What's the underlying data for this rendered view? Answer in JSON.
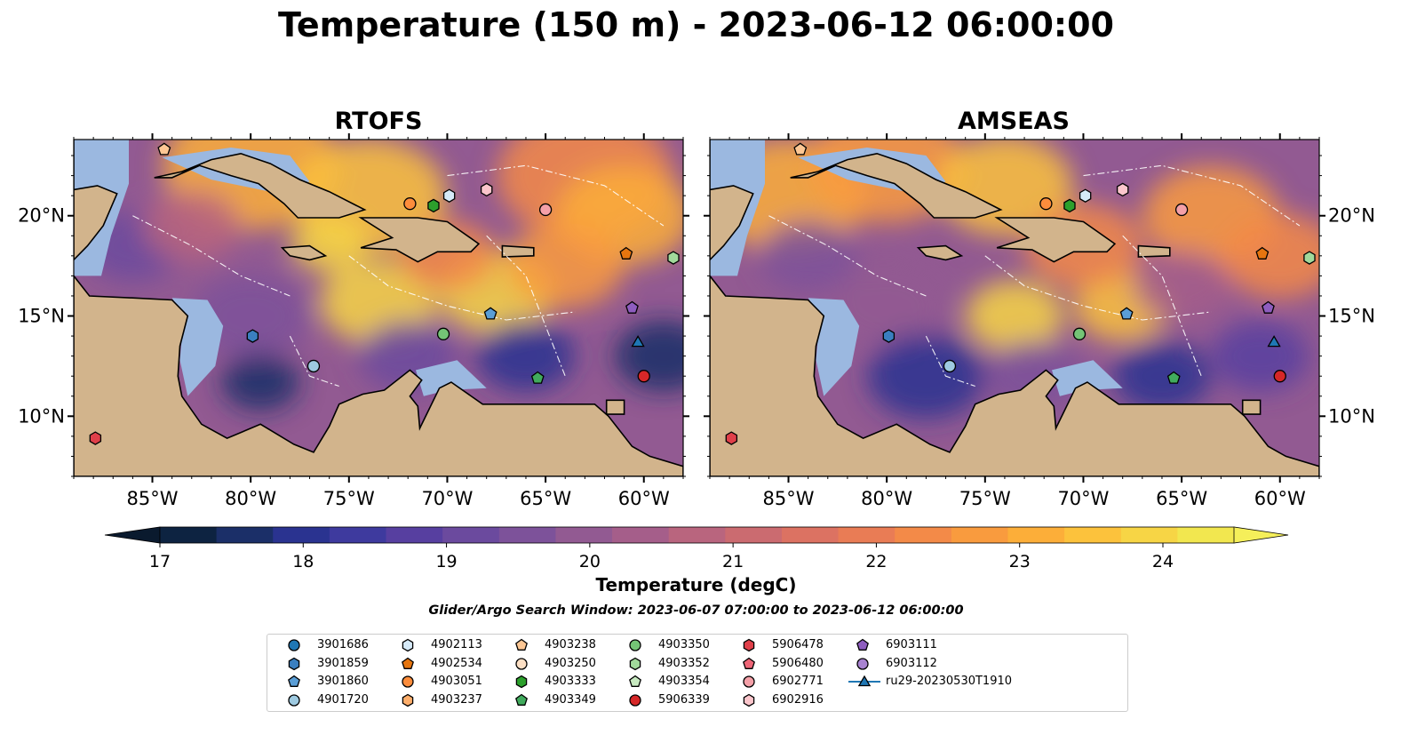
{
  "title": "Temperature (150 m) - 2023-06-12 06:00:00",
  "panels": [
    {
      "title": "RTOFS",
      "key": "rtofs"
    },
    {
      "title": "AMSEAS",
      "key": "amseas"
    }
  ],
  "lon_ticks": [
    "85°W",
    "80°W",
    "75°W",
    "70°W",
    "65°W",
    "60°W"
  ],
  "lat_ticks": [
    "20°N",
    "15°N",
    "10°N"
  ],
  "colorbar": {
    "label": "Temperature (degC)",
    "min": 17,
    "max": 24,
    "ticks": [
      "17",
      "18",
      "19",
      "20",
      "21",
      "22",
      "23",
      "24"
    ],
    "colors": [
      "#0d2341",
      "#1b2f68",
      "#2a3390",
      "#3e3a9e",
      "#573fa0",
      "#6b4a9e",
      "#7d529a",
      "#925a92",
      "#a55e8a",
      "#b9657e",
      "#cb6b70",
      "#dc7262",
      "#e97c55",
      "#f38a48",
      "#f99b3e",
      "#fcae39",
      "#fcc23c",
      "#f7d545",
      "#f2e74f"
    ],
    "under_color": "#0a1a2e",
    "over_color": "#f5ef5a"
  },
  "search_window": "Glider/Argo Search Window: 2023-06-07 07:00:00 to 2023-06-12 06:00:00",
  "map_colors": {
    "land": "#d2b48c",
    "shallow": "#9bb8e0",
    "coast": "#000000"
  },
  "legend": [
    {
      "label": "3901686",
      "marker": "circle",
      "color": "#1f77b4"
    },
    {
      "label": "3901859",
      "marker": "hexagon",
      "color": "#3a7fc0"
    },
    {
      "label": "3901860",
      "marker": "pentagon",
      "color": "#5a9ed6"
    },
    {
      "label": "4901720",
      "marker": "circle",
      "color": "#9ecae1"
    },
    {
      "label": "4902113",
      "marker": "hexagon",
      "color": "#d6eaf8"
    },
    {
      "label": "4902534",
      "marker": "pentagon",
      "color": "#e6750f"
    },
    {
      "label": "4903051",
      "marker": "circle",
      "color": "#fd8d3c"
    },
    {
      "label": "4903237",
      "marker": "hexagon",
      "color": "#fdae6b"
    },
    {
      "label": "4903238",
      "marker": "pentagon",
      "color": "#fdc794"
    },
    {
      "label": "4903250",
      "marker": "circle",
      "color": "#fde0c5"
    },
    {
      "label": "4903333",
      "marker": "hexagon",
      "color": "#2ca02c"
    },
    {
      "label": "4903349",
      "marker": "pentagon",
      "color": "#41ab5d"
    },
    {
      "label": "4903350",
      "marker": "circle",
      "color": "#74c476"
    },
    {
      "label": "4903352",
      "marker": "hexagon",
      "color": "#a1d99b"
    },
    {
      "label": "4903354",
      "marker": "pentagon",
      "color": "#c7e9c0"
    },
    {
      "label": "5906339",
      "marker": "circle",
      "color": "#d62728"
    },
    {
      "label": "5906478",
      "marker": "hexagon",
      "color": "#e0404a"
    },
    {
      "label": "5906480",
      "marker": "pentagon",
      "color": "#ee6677"
    },
    {
      "label": "6902771",
      "marker": "circle",
      "color": "#f4a0a8"
    },
    {
      "label": "6902916",
      "marker": "hexagon",
      "color": "#fbc6cc"
    },
    {
      "label": "6903111",
      "marker": "pentagon",
      "color": "#8e5dbf"
    },
    {
      "label": "6903112",
      "marker": "circle",
      "color": "#a883d1"
    },
    {
      "label": "ru29-20230530T1910",
      "marker": "triangle-line",
      "color": "#1f77b4"
    }
  ],
  "floats_on_map": [
    {
      "id": "6902916",
      "lon": -68.0,
      "lat": 21.3
    },
    {
      "id": "4902113",
      "lon": -69.9,
      "lat": 21.0
    },
    {
      "id": "4903051",
      "lon": -71.9,
      "lat": 20.6
    },
    {
      "id": "4903333",
      "lon": -70.7,
      "lat": 20.5
    },
    {
      "id": "6902771",
      "lon": -65.0,
      "lat": 20.3
    },
    {
      "id": "4902534",
      "lon": -60.9,
      "lat": 18.1
    },
    {
      "id": "4903352",
      "lon": -58.5,
      "lat": 17.9
    },
    {
      "id": "3901860",
      "lon": -67.8,
      "lat": 15.1
    },
    {
      "id": "6903111",
      "lon": -60.6,
      "lat": 15.4
    },
    {
      "id": "3901859",
      "lon": -79.9,
      "lat": 14.0
    },
    {
      "id": "4903350",
      "lon": -70.2,
      "lat": 14.1
    },
    {
      "id": "4901720",
      "lon": -76.8,
      "lat": 12.5
    },
    {
      "id": "ru29-20230530T1910",
      "lon": -60.3,
      "lat": 13.7
    },
    {
      "id": "4903349",
      "lon": -65.4,
      "lat": 11.9
    },
    {
      "id": "5906339",
      "lon": -60.0,
      "lat": 12.0
    },
    {
      "id": "5906478",
      "lon": -87.9,
      "lat": 8.9
    },
    {
      "id": "4903238",
      "lon": -84.4,
      "lat": 23.3
    }
  ]
}
